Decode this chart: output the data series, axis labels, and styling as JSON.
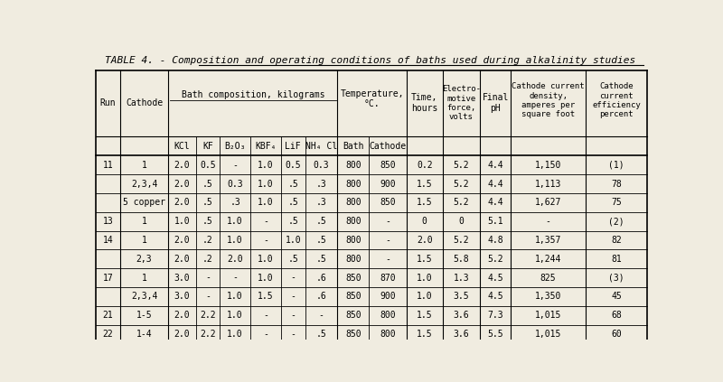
{
  "title": "TABLE 4. - Composition and operating conditions of baths used during alkalinity studies",
  "bg_color": "#f0ece0",
  "title_underline_start": "Composition",
  "rows": [
    [
      "11",
      "1",
      "2.0",
      "0.5",
      "-",
      "1.0",
      "0.5",
      "0.3",
      "800",
      "850",
      "0.2",
      "5.2",
      "4.4",
      "1,150",
      "(1)"
    ],
    [
      "",
      "2,3,4",
      "2.0",
      ".5",
      "0.3",
      "1.0",
      ".5",
      ".3",
      "800",
      "900",
      "1.5",
      "5.2",
      "4.4",
      "1,113",
      "78"
    ],
    [
      "",
      "5 copper",
      "2.0",
      ".5",
      ".3",
      "1.0",
      ".5",
      ".3",
      "800",
      "850",
      "1.5",
      "5.2",
      "4.4",
      "1,627",
      "75"
    ],
    [
      "13",
      "1",
      "1.0",
      ".5",
      "1.0",
      "-",
      ".5",
      ".5",
      "800",
      "-",
      "0",
      "0",
      "5.1",
      "-",
      "(2)"
    ],
    [
      "14",
      "1",
      "2.0",
      ".2",
      "1.0",
      "-",
      "1.0",
      ".5",
      "800",
      "-",
      "2.0",
      "5.2",
      "4.8",
      "1,357",
      "82"
    ],
    [
      "",
      "2,3",
      "2.0",
      ".2",
      "2.0",
      "1.0",
      ".5",
      ".5",
      "800",
      "-",
      "1.5",
      "5.8",
      "5.2",
      "1,244",
      "81"
    ],
    [
      "17",
      "1",
      "3.0",
      "-",
      "-",
      "1.0",
      "-",
      ".6",
      "850",
      "870",
      "1.0",
      "1.3",
      "4.5",
      "825",
      "(3)"
    ],
    [
      "",
      "2,3,4",
      "3.0",
      "-",
      "1.0",
      "1.5",
      "-",
      ".6",
      "850",
      "900",
      "1.0",
      "3.5",
      "4.5",
      "1,350",
      "45"
    ],
    [
      "21",
      "1-5",
      "2.0",
      "2.2",
      "1.0",
      "-",
      "-",
      "-",
      "850",
      "800",
      "1.5",
      "3.6",
      "7.3",
      "1,015",
      "68"
    ],
    [
      "22",
      "1-4",
      "2.0",
      "2.2",
      "1.0",
      "-",
      "-",
      ".5",
      "850",
      "800",
      "1.5",
      "3.6",
      "5.5",
      "1,015",
      "60"
    ]
  ],
  "font_size": 7.0,
  "title_font_size": 8.0
}
